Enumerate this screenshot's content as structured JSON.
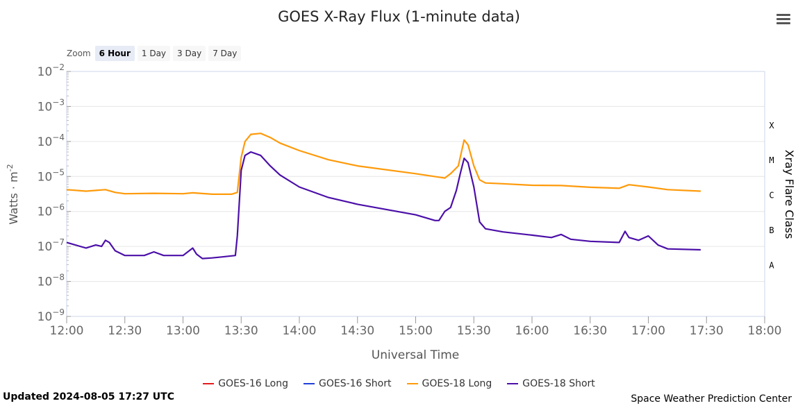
{
  "title": "GOES X-Ray Flux (1-minute data)",
  "zoom": {
    "label": "Zoom",
    "buttons": [
      "6 Hour",
      "1 Day",
      "3 Day",
      "7 Day"
    ],
    "active": "6 Hour"
  },
  "footer": {
    "updated": "Updated 2024-08-05 17:27 UTC",
    "credit": "Space Weather Prediction Center"
  },
  "chart_data": {
    "type": "line",
    "title": "GOES X-Ray Flux (1-minute data)",
    "xlabel": "Universal Time",
    "ylabel": "Watts · m",
    "ylabel_superscript": "-2",
    "ylabel_right": "Xray Flare Class",
    "y_scale": "log",
    "ylim": [
      1e-09,
      0.01
    ],
    "xlim": [
      "12:00",
      "18:00"
    ],
    "x_ticks": [
      "12:00",
      "12:30",
      "13:00",
      "13:30",
      "14:00",
      "14:30",
      "15:00",
      "15:30",
      "16:00",
      "16:30",
      "17:00",
      "17:30",
      "18:00"
    ],
    "y_ticks": [
      {
        "base": "10",
        "exp": "−2"
      },
      {
        "base": "10",
        "exp": "−3"
      },
      {
        "base": "10",
        "exp": "−4"
      },
      {
        "base": "10",
        "exp": "−5"
      },
      {
        "base": "10",
        "exp": "−6"
      },
      {
        "base": "10",
        "exp": "−7"
      },
      {
        "base": "10",
        "exp": "−8"
      },
      {
        "base": "10",
        "exp": "−9"
      }
    ],
    "flare_classes": [
      {
        "label": "X",
        "value": 0.0003
      },
      {
        "label": "M",
        "value": 3e-05
      },
      {
        "label": "C",
        "value": 3e-06
      },
      {
        "label": "B",
        "value": 3e-07
      },
      {
        "label": "A",
        "value": 3e-08
      }
    ],
    "grid": true,
    "legend_position": "bottom",
    "legend": [
      {
        "name": "GOES-16 Long",
        "color": "#e41a1c"
      },
      {
        "name": "GOES-16 Short",
        "color": "#1f3fd6"
      },
      {
        "name": "GOES-18 Long",
        "color": "#ff9a0a"
      },
      {
        "name": "GOES-18 Short",
        "color": "#4b0fa8"
      }
    ],
    "series": [
      {
        "name": "GOES-18 Long",
        "color": "#ff9a0a",
        "x": [
          "12:00",
          "12:10",
          "12:15",
          "12:20",
          "12:25",
          "12:30",
          "12:45",
          "13:00",
          "13:05",
          "13:15",
          "13:25",
          "13:28",
          "13:30",
          "13:32",
          "13:35",
          "13:40",
          "13:45",
          "13:50",
          "14:00",
          "14:15",
          "14:30",
          "15:00",
          "15:15",
          "15:18",
          "15:22",
          "15:25",
          "15:27",
          "15:30",
          "15:33",
          "15:36",
          "15:45",
          "16:00",
          "16:15",
          "16:30",
          "16:45",
          "16:50",
          "17:00",
          "17:10",
          "17:27"
        ],
        "values": [
          4.2e-06,
          3.8e-06,
          4e-06,
          4.2e-06,
          3.5e-06,
          3.2e-06,
          3.3e-06,
          3.2e-06,
          3.4e-06,
          3.1e-06,
          3.1e-06,
          3.5e-06,
          3.5e-05,
          0.0001,
          0.00016,
          0.00017,
          0.00013,
          9e-05,
          5.5e-05,
          3e-05,
          2e-05,
          1.2e-05,
          9e-06,
          1.2e-05,
          2e-05,
          0.00011,
          8e-05,
          2e-05,
          8e-06,
          6.5e-06,
          6.2e-06,
          5.6e-06,
          5.5e-06,
          4.9e-06,
          4.6e-06,
          5.8e-06,
          5e-06,
          4.2e-06,
          3.8e-06
        ]
      },
      {
        "name": "GOES-18 Short",
        "color": "#4b0fa8",
        "x": [
          "12:00",
          "12:10",
          "12:15",
          "12:18",
          "12:20",
          "12:22",
          "12:25",
          "12:30",
          "12:40",
          "12:45",
          "12:50",
          "13:00",
          "13:05",
          "13:07",
          "13:10",
          "13:15",
          "13:20",
          "13:27",
          "13:28",
          "13:30",
          "13:32",
          "13:35",
          "13:40",
          "13:45",
          "13:50",
          "14:00",
          "14:15",
          "14:30",
          "15:00",
          "15:10",
          "15:12",
          "15:15",
          "15:18",
          "15:21",
          "15:23",
          "15:25",
          "15:27",
          "15:30",
          "15:33",
          "15:36",
          "15:45",
          "16:00",
          "16:10",
          "16:15",
          "16:20",
          "16:30",
          "16:45",
          "16:48",
          "16:50",
          "16:55",
          "17:00",
          "17:05",
          "17:10",
          "17:27"
        ],
        "values": [
          1.3e-07,
          9e-08,
          1.1e-07,
          1e-07,
          1.5e-07,
          1.3e-07,
          7.5e-08,
          5.5e-08,
          5.5e-08,
          7e-08,
          5.5e-08,
          5.5e-08,
          9e-08,
          6e-08,
          4.5e-08,
          4.7e-08,
          5e-08,
          5.5e-08,
          2e-07,
          1.5e-05,
          4e-05,
          5e-05,
          4e-05,
          2e-05,
          1.1e-05,
          5e-06,
          2.5e-06,
          1.6e-06,
          8e-07,
          5.5e-07,
          5.5e-07,
          1e-06,
          1.3e-06,
          4e-06,
          1.2e-05,
          3.3e-05,
          2.5e-05,
          5e-06,
          5e-07,
          3.2e-07,
          2.6e-07,
          2.1e-07,
          1.8e-07,
          2.2e-07,
          1.6e-07,
          1.4e-07,
          1.3e-07,
          2.7e-07,
          1.8e-07,
          1.5e-07,
          2e-07,
          1.1e-07,
          8.5e-08,
          8e-08
        ]
      },
      {
        "name": "GOES-16 Long",
        "color": "#e41a1c",
        "x": [],
        "values": []
      },
      {
        "name": "GOES-16 Short",
        "color": "#1f3fd6",
        "x": [],
        "values": []
      }
    ]
  }
}
